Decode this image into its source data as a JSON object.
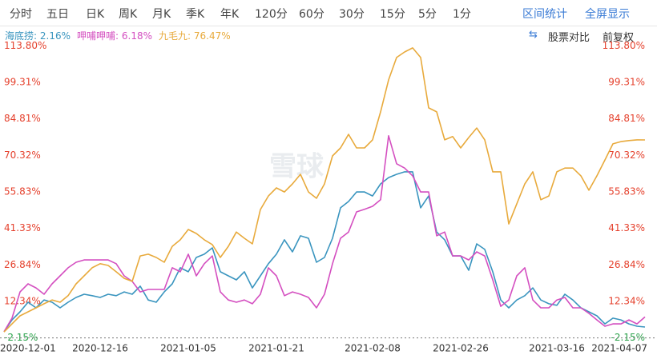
{
  "tabs": [
    "分时",
    "五日",
    "日K",
    "周K",
    "月K",
    "季K",
    "年K",
    "120分",
    "60分",
    "30分",
    "15分",
    "5分",
    "1分"
  ],
  "tools": [
    "区间统计",
    "全屏显示"
  ],
  "toolbar_right": [
    "股票对比",
    "前复权"
  ],
  "watermark": "雪球",
  "chart_data": {
    "type": "line",
    "categories": [
      "2020-12-01",
      null,
      null,
      null,
      null,
      null,
      null,
      null,
      null,
      null,
      null,
      null,
      "2020-12-16",
      null,
      null,
      null,
      null,
      null,
      null,
      null,
      null,
      null,
      null,
      "2021-01-05",
      null,
      null,
      null,
      null,
      null,
      null,
      null,
      null,
      null,
      null,
      "2021-01-21",
      null,
      null,
      null,
      null,
      null,
      null,
      null,
      null,
      null,
      null,
      null,
      "2021-02-08",
      null,
      null,
      null,
      null,
      null,
      null,
      null,
      null,
      null,
      null,
      "2021-02-26",
      null,
      null,
      null,
      null,
      null,
      null,
      null,
      null,
      null,
      null,
      null,
      "2021-03-16",
      null,
      null,
      null,
      null,
      null,
      null,
      null,
      null,
      null,
      null,
      "2021-04-07"
    ],
    "series": [
      {
        "name": "海底捞",
        "legend_label": "2.16%",
        "color": "#3a95bf",
        "values": [
          0.3,
          5.0,
          8.2,
          12.0,
          9.8,
          12.9,
          12.0,
          9.8,
          12.0,
          13.9,
          15.2,
          14.6,
          13.9,
          15.2,
          14.6,
          16.1,
          15.2,
          18.4,
          12.9,
          12.0,
          16.1,
          19.3,
          25.7,
          24.1,
          29.8,
          31.1,
          33.6,
          24.1,
          22.5,
          20.9,
          24.1,
          17.7,
          22.5,
          27.3,
          31.1,
          36.8,
          32.0,
          38.4,
          37.4,
          27.9,
          29.8,
          37.4,
          49.5,
          52.0,
          55.8,
          55.8,
          54.2,
          59.0,
          61.5,
          62.8,
          63.8,
          63.8,
          49.5,
          54.2,
          39.9,
          36.8,
          30.4,
          30.4,
          24.7,
          35.2,
          33.0,
          24.1,
          12.9,
          9.8,
          12.9,
          14.6,
          17.7,
          12.9,
          11.4,
          10.8,
          15.2,
          12.9,
          9.8,
          8.2,
          6.6,
          3.4,
          5.7,
          5.0,
          3.4,
          2.5,
          2.16
        ]
      },
      {
        "name": "呷哺呷哺",
        "legend_label": "6.18%",
        "color": "#d44fc0",
        "values": [
          0.3,
          5.7,
          16.1,
          19.3,
          17.7,
          15.2,
          19.3,
          22.5,
          25.7,
          27.9,
          28.8,
          28.8,
          28.8,
          28.8,
          27.3,
          22.5,
          20.3,
          16.1,
          17.1,
          17.1,
          17.1,
          25.7,
          24.1,
          31.1,
          22.5,
          27.3,
          30.4,
          16.1,
          12.9,
          12.0,
          12.9,
          11.4,
          15.2,
          25.7,
          22.5,
          14.6,
          16.1,
          15.2,
          13.9,
          9.8,
          15.2,
          27.3,
          37.4,
          39.9,
          47.9,
          48.9,
          50.1,
          52.7,
          78.1,
          67.0,
          65.3,
          62.2,
          55.8,
          55.8,
          38.4,
          39.9,
          30.4,
          30.4,
          28.8,
          32.0,
          30.4,
          20.9,
          10.4,
          12.9,
          22.5,
          25.7,
          12.9,
          9.8,
          9.8,
          12.9,
          13.9,
          9.8,
          9.8,
          7.6,
          5.0,
          2.5,
          3.4,
          3.4,
          5.0,
          3.4,
          6.18
        ]
      },
      {
        "name": "九毛九",
        "legend_label": "76.47%",
        "color": "#e8aa3c",
        "values": [
          0.2,
          3.4,
          6.6,
          8.2,
          9.8,
          11.4,
          12.9,
          12.0,
          14.6,
          19.3,
          22.5,
          25.7,
          27.3,
          26.6,
          24.1,
          21.5,
          20.3,
          30.4,
          31.1,
          29.8,
          27.9,
          34.2,
          36.8,
          40.9,
          39.3,
          36.8,
          34.9,
          29.8,
          34.2,
          39.9,
          37.4,
          35.2,
          48.8,
          54.2,
          57.4,
          55.8,
          59.0,
          62.8,
          55.8,
          53.3,
          59.0,
          70.1,
          73.3,
          78.7,
          73.3,
          73.3,
          76.5,
          87.6,
          100.3,
          109.2,
          111.4,
          113.0,
          109.2,
          89.2,
          87.6,
          76.5,
          77.8,
          73.3,
          77.4,
          81.2,
          76.5,
          63.8,
          63.8,
          43.1,
          51.1,
          59.0,
          63.8,
          52.7,
          54.2,
          63.8,
          65.3,
          65.3,
          62.2,
          56.5,
          62.2,
          68.5,
          74.9,
          75.8,
          76.2,
          76.5,
          76.47
        ]
      }
    ],
    "ylim": [
      -2.15,
      113.8
    ],
    "yticks": [
      {
        "value": 113.8,
        "label": "113.80%"
      },
      {
        "value": 99.31,
        "label": "99.31%"
      },
      {
        "value": 84.81,
        "label": "84.81%"
      },
      {
        "value": 70.32,
        "label": "70.32%"
      },
      {
        "value": 55.83,
        "label": "55.83%"
      },
      {
        "value": 41.33,
        "label": "41.33%"
      },
      {
        "value": 26.84,
        "label": "26.84%"
      },
      {
        "value": 12.34,
        "label": "12.34%"
      },
      {
        "value": -2.15,
        "label": "-2.15%"
      }
    ],
    "grid": false,
    "up_color": "#e5412d",
    "down_color": "#2aa24a"
  }
}
